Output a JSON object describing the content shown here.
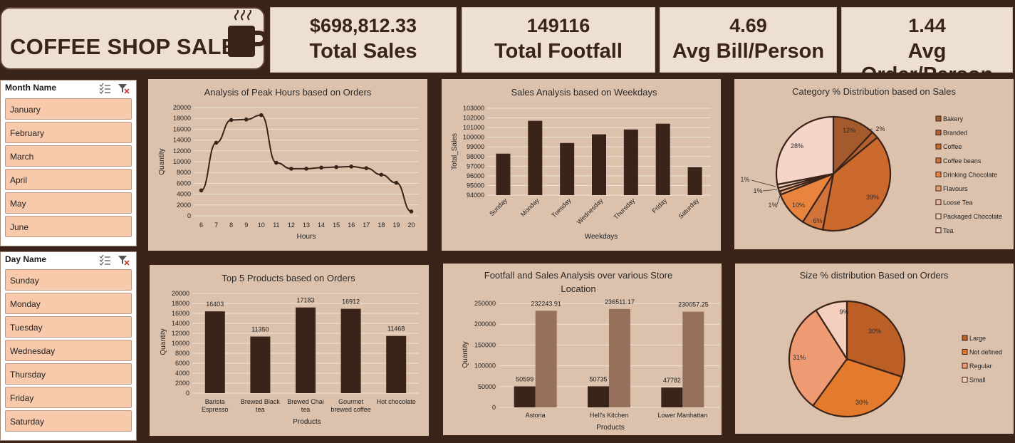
{
  "header": {
    "title": "COFFEE SHOP SALES"
  },
  "kpis": [
    {
      "value": "$698,812.33",
      "label": "Total Sales"
    },
    {
      "value": "149116",
      "label": "Total Footfall"
    },
    {
      "value": "4.69",
      "label": "Avg Bill/Person"
    },
    {
      "value": "1.44",
      "label": "Avg Order/Person"
    }
  ],
  "slicers": {
    "month": {
      "header": "Month Name",
      "items": [
        "January",
        "February",
        "March",
        "April",
        "May",
        "June"
      ]
    },
    "day": {
      "header": "Day Name",
      "items": [
        "Sunday",
        "Monday",
        "Tuesday",
        "Wednesday",
        "Thursday",
        "Friday",
        "Saturday"
      ]
    }
  },
  "colors": {
    "dark": "#3a2419",
    "panel": "#dcc1ac",
    "kpi": "#ede0d1",
    "slicer_item": "#f8c9ab",
    "tan": "#96705b"
  },
  "chart_data": [
    {
      "id": "peak",
      "type": "line",
      "title": "Analysis of  Peak Hours based on Orders",
      "xlabel": "Hours",
      "ylabel": "Quantity",
      "x": [
        6,
        7,
        8,
        9,
        10,
        11,
        12,
        13,
        14,
        15,
        16,
        17,
        18,
        19,
        20
      ],
      "values": [
        4700,
        13500,
        17700,
        17800,
        18600,
        9800,
        8700,
        8700,
        8900,
        9000,
        9100,
        8800,
        7600,
        6100,
        800
      ],
      "ylim": [
        0,
        20000
      ],
      "yticks": [
        0,
        2000,
        4000,
        6000,
        8000,
        10000,
        12000,
        14000,
        16000,
        18000,
        20000
      ],
      "grid": true
    },
    {
      "id": "weekday",
      "type": "bar",
      "title": "Sales Analysis based on Weekdays",
      "xlabel": "Weekdays",
      "ylabel": "Total_Sales",
      "categories": [
        "Sunday",
        "Monday",
        "Tuesday",
        "Wednesday",
        "Thursday",
        "Friday",
        "Saturday"
      ],
      "values": [
        98300,
        101700,
        99400,
        100300,
        100800,
        101400,
        96900
      ],
      "ylim": [
        94000,
        103000
      ],
      "yticks": [
        94000,
        95000,
        96000,
        97000,
        98000,
        99000,
        100000,
        101000,
        102000,
        103000
      ],
      "grid": true
    },
    {
      "id": "category",
      "type": "pie",
      "title": "Category % Distribution based on Sales",
      "categories": [
        "Bakery",
        "Branded",
        "Coffee",
        "Coffee beans",
        "Drinking Chocolate",
        "Flavours",
        "Loose Tea",
        "Packaged Chocolate",
        "Tea"
      ],
      "values": [
        12,
        2,
        39,
        6,
        10,
        1,
        1,
        1,
        28
      ],
      "labels": [
        "12%",
        "2%",
        "39%",
        "6%",
        "10%",
        "1%",
        "1%",
        "1%",
        "28%"
      ],
      "colors": [
        "#a45a2c",
        "#b5612f",
        "#cc6a2d",
        "#d2733b",
        "#e9843f",
        "#efa476",
        "#e9bba4",
        "#f0cfbf",
        "#f5d5c8"
      ],
      "legend": "right"
    },
    {
      "id": "products",
      "type": "bar",
      "title": "Top 5 Products based on Orders",
      "xlabel": "Products",
      "ylabel": "Quantity",
      "categories": [
        [
          "Barista",
          "Espresso"
        ],
        [
          "Brewed Black",
          "tea"
        ],
        [
          "Brewed Chai",
          "tea"
        ],
        [
          "Gourmet",
          "brewed coffee"
        ],
        [
          "Hot chocolate"
        ]
      ],
      "values": [
        16403,
        11350,
        17183,
        16912,
        11468
      ],
      "data_labels": [
        "16403",
        "11350",
        "17183",
        "16912",
        "11468"
      ],
      "ylim": [
        0,
        20000
      ],
      "yticks": [
        0,
        2000,
        4000,
        6000,
        8000,
        10000,
        12000,
        14000,
        16000,
        18000,
        20000
      ],
      "grid": true
    },
    {
      "id": "store",
      "type": "bar",
      "title": [
        "Footfall and Sales Analysis over various Store",
        "Location"
      ],
      "xlabel": "Products",
      "ylabel": "Quantity",
      "categories": [
        "Astoria",
        "Hell's Kitchen",
        "Lower Manhattan"
      ],
      "series": [
        {
          "values": [
            50599,
            50735,
            47782
          ],
          "labels": [
            "50599",
            "50735",
            "47782"
          ],
          "color": "#3a2419"
        },
        {
          "values": [
            232243.91,
            236511.17,
            230057.25
          ],
          "labels": [
            "232243.91",
            "236511.17",
            "230057.25"
          ],
          "color": "#96705b"
        }
      ],
      "ylim": [
        0,
        250000
      ],
      "yticks": [
        0,
        50000,
        100000,
        150000,
        200000,
        250000
      ],
      "grid": true
    },
    {
      "id": "size",
      "type": "pie",
      "title": "Size % distribution Based on Orders",
      "categories": [
        "Large",
        "Not defined",
        "Regular",
        "Small"
      ],
      "values": [
        30,
        30,
        31,
        9
      ],
      "labels": [
        "30%",
        "30%",
        "31%",
        "9%"
      ],
      "colors": [
        "#bc5f26",
        "#e47a2b",
        "#ee9a72",
        "#f5cfbd"
      ],
      "legend": "right"
    }
  ]
}
